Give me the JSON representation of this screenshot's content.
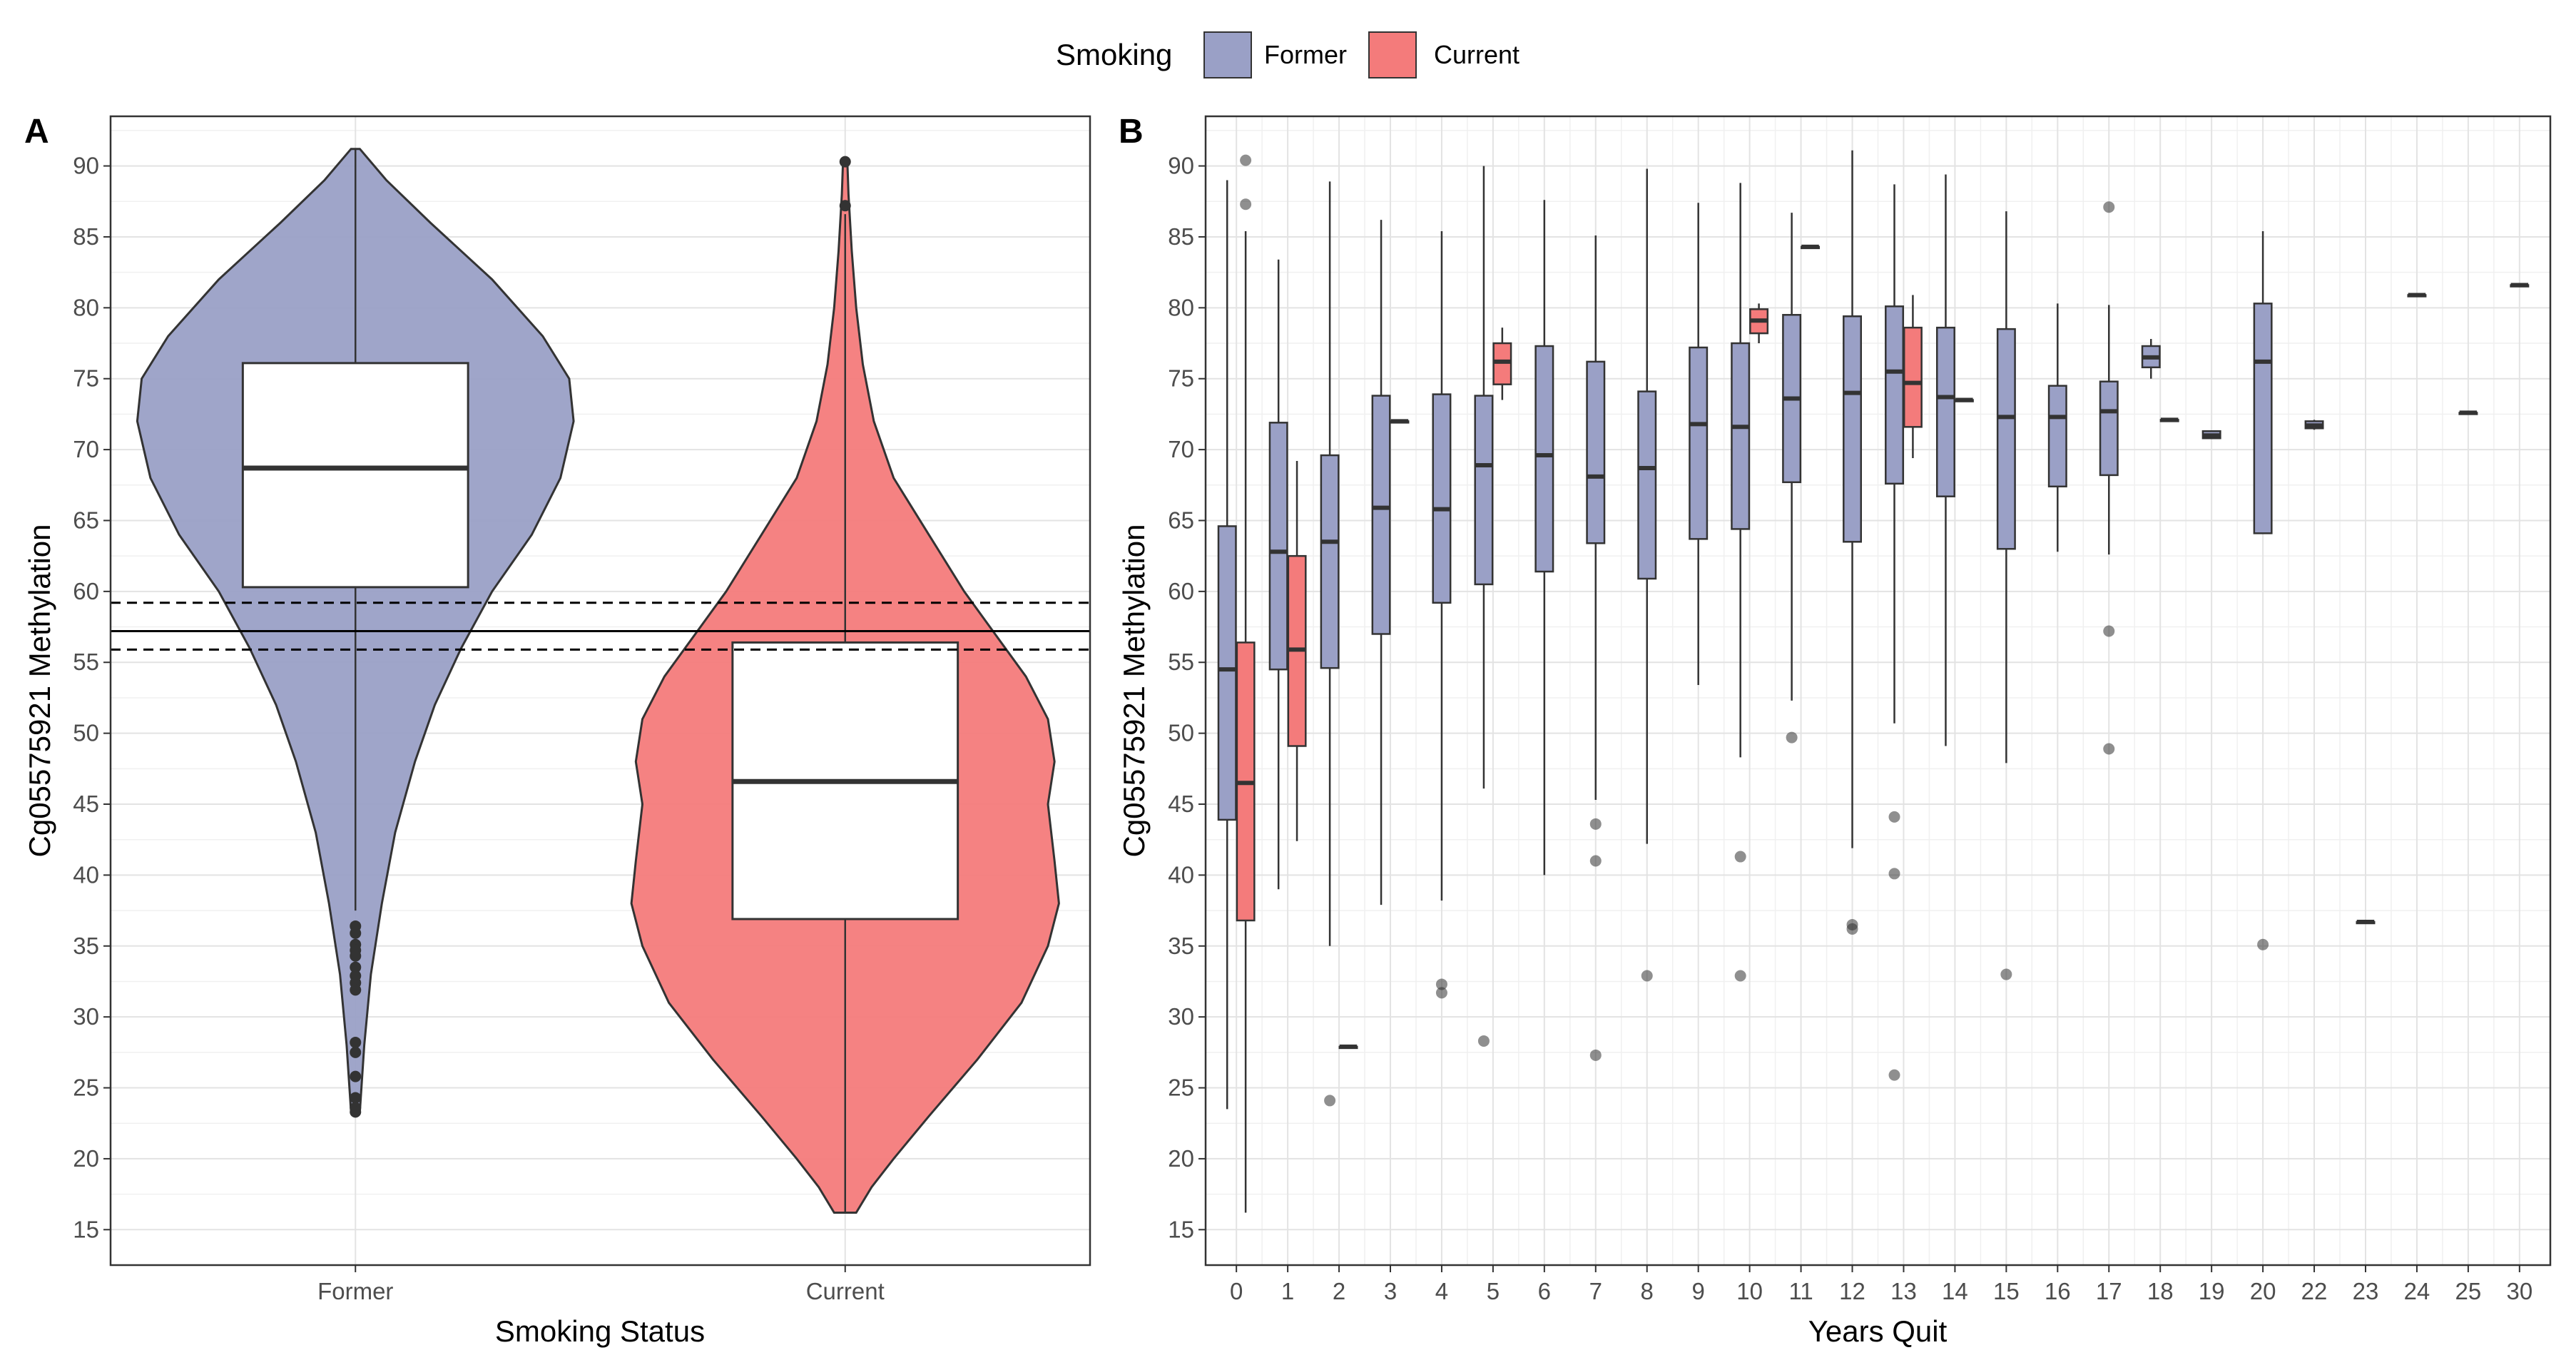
{
  "legend": {
    "title": "Smoking",
    "items": [
      {
        "label": "Former",
        "color": "#9aa0c6"
      },
      {
        "label": "Current",
        "color": "#f47b7b"
      }
    ]
  },
  "chart_data": [
    {
      "panel": "A",
      "type": "violin",
      "xlabel": "Smoking Status",
      "ylabel": "Cg05575921 Methylation",
      "ylim": [
        12.5,
        93.5
      ],
      "yticks": [
        15,
        20,
        25,
        30,
        35,
        40,
        45,
        50,
        55,
        60,
        65,
        70,
        75,
        80,
        85,
        90
      ],
      "categories": [
        "Former",
        "Current"
      ],
      "reference_lines": [
        {
          "value": 57.2,
          "style": "solid"
        },
        {
          "value": 59.2,
          "style": "dashed"
        },
        {
          "value": 55.9,
          "style": "dashed"
        }
      ],
      "groups": [
        {
          "name": "Former",
          "color": "#9aa0c6",
          "box": {
            "q1": 60.3,
            "median": 68.7,
            "q3": 76.1,
            "lower": 37.5,
            "upper": 91.2
          },
          "outliers": [
            36.4,
            35.9,
            35.1,
            34.7,
            34.3,
            33.5,
            32.9,
            32.4,
            31.9,
            28.2,
            27.5,
            25.8,
            24.3,
            23.6,
            23.3
          ],
          "density": [
            [
              23.3,
              0.02
            ],
            [
              28,
              0.04
            ],
            [
              33,
              0.07
            ],
            [
              38,
              0.12
            ],
            [
              43,
              0.18
            ],
            [
              48,
              0.27
            ],
            [
              52,
              0.36
            ],
            [
              56,
              0.48
            ],
            [
              60,
              0.62
            ],
            [
              64,
              0.8
            ],
            [
              68,
              0.93
            ],
            [
              72,
              0.99
            ],
            [
              75,
              0.97
            ],
            [
              78,
              0.85
            ],
            [
              82,
              0.62
            ],
            [
              86,
              0.34
            ],
            [
              89,
              0.14
            ],
            [
              91.2,
              0.02
            ]
          ]
        },
        {
          "name": "Current",
          "color": "#f47b7b",
          "box": {
            "q1": 36.9,
            "median": 46.6,
            "q3": 56.4,
            "lower": 16.2,
            "upper": 86.6
          },
          "outliers": [
            87.2,
            90.3
          ],
          "density": [
            [
              16.2,
              0.05
            ],
            [
              18,
              0.12
            ],
            [
              20,
              0.22
            ],
            [
              23,
              0.38
            ],
            [
              27,
              0.6
            ],
            [
              31,
              0.8
            ],
            [
              35,
              0.92
            ],
            [
              38,
              0.97
            ],
            [
              41,
              0.95
            ],
            [
              45,
              0.92
            ],
            [
              48,
              0.95
            ],
            [
              51,
              0.92
            ],
            [
              54,
              0.82
            ],
            [
              57,
              0.68
            ],
            [
              60,
              0.54
            ],
            [
              64,
              0.38
            ],
            [
              68,
              0.22
            ],
            [
              72,
              0.13
            ],
            [
              76,
              0.08
            ],
            [
              80,
              0.05
            ],
            [
              84,
              0.03
            ],
            [
              88,
              0.015
            ],
            [
              90.3,
              0.01
            ]
          ]
        }
      ]
    },
    {
      "panel": "B",
      "type": "box",
      "xlabel": "Years Quit",
      "ylabel": "Cg05575921 Methylation",
      "ylim": [
        12.5,
        93.5
      ],
      "yticks": [
        15,
        20,
        25,
        30,
        35,
        40,
        45,
        50,
        55,
        60,
        65,
        70,
        75,
        80,
        85,
        90
      ],
      "categories": [
        "0",
        "1",
        "2",
        "3",
        "4",
        "5",
        "6",
        "7",
        "8",
        "9",
        "10",
        "11",
        "12",
        "13",
        "14",
        "15",
        "16",
        "17",
        "18",
        "19",
        "20",
        "22",
        "23",
        "24",
        "25",
        "30"
      ],
      "boxes": [
        {
          "x": "0",
          "group": "Former",
          "q1": 43.9,
          "median": 54.5,
          "q3": 64.6,
          "lower": 23.5,
          "upper": 89.0,
          "outliers": []
        },
        {
          "x": "0",
          "group": "Current",
          "q1": 36.8,
          "median": 46.5,
          "q3": 56.4,
          "lower": 16.2,
          "upper": 85.4,
          "outliers": [
            87.3,
            90.4
          ]
        },
        {
          "x": "1",
          "group": "Former",
          "q1": 54.5,
          "median": 62.8,
          "q3": 71.9,
          "lower": 39.0,
          "upper": 83.4,
          "outliers": []
        },
        {
          "x": "1",
          "group": "Current",
          "q1": 49.1,
          "median": 55.9,
          "q3": 62.5,
          "lower": 42.4,
          "upper": 69.2,
          "outliers": []
        },
        {
          "x": "2",
          "group": "Former",
          "q1": 54.6,
          "median": 63.5,
          "q3": 69.6,
          "lower": 35.0,
          "upper": 88.9,
          "outliers": [
            24.1
          ]
        },
        {
          "x": "2",
          "group": "Current",
          "q1": 27.9,
          "median": 27.9,
          "q3": 27.9,
          "lower": 27.9,
          "upper": 27.9,
          "outliers": []
        },
        {
          "x": "3",
          "group": "Former",
          "q1": 57.0,
          "median": 65.9,
          "q3": 73.8,
          "lower": 37.9,
          "upper": 86.2,
          "outliers": []
        },
        {
          "x": "3",
          "group": "Current",
          "q1": 72.0,
          "median": 72.0,
          "q3": 72.0,
          "lower": 72.0,
          "upper": 72.0,
          "outliers": []
        },
        {
          "x": "4",
          "group": "Former",
          "q1": 59.2,
          "median": 65.8,
          "q3": 73.9,
          "lower": 38.2,
          "upper": 85.4,
          "outliers": [
            32.3,
            31.7
          ]
        },
        {
          "x": "5",
          "group": "Former",
          "q1": 60.5,
          "median": 68.9,
          "q3": 73.8,
          "lower": 46.1,
          "upper": 90.0,
          "outliers": [
            28.3
          ]
        },
        {
          "x": "5",
          "group": "Current",
          "q1": 74.6,
          "median": 76.2,
          "q3": 77.5,
          "lower": 73.5,
          "upper": 78.6,
          "outliers": []
        },
        {
          "x": "6",
          "group": "Former",
          "q1": 61.4,
          "median": 69.6,
          "q3": 77.3,
          "lower": 40.0,
          "upper": 87.6,
          "outliers": []
        },
        {
          "x": "7",
          "group": "Former",
          "q1": 63.4,
          "median": 68.1,
          "q3": 76.2,
          "lower": 45.3,
          "upper": 85.1,
          "outliers": [
            43.6,
            41.0,
            27.3
          ]
        },
        {
          "x": "8",
          "group": "Former",
          "q1": 60.9,
          "median": 68.7,
          "q3": 74.1,
          "lower": 42.2,
          "upper": 89.8,
          "outliers": [
            32.9
          ]
        },
        {
          "x": "9",
          "group": "Former",
          "q1": 63.7,
          "median": 71.8,
          "q3": 77.2,
          "lower": 53.4,
          "upper": 87.4,
          "outliers": []
        },
        {
          "x": "10",
          "group": "Former",
          "q1": 64.4,
          "median": 71.6,
          "q3": 77.5,
          "lower": 48.3,
          "upper": 88.8,
          "outliers": [
            41.3,
            32.9
          ]
        },
        {
          "x": "10",
          "group": "Current",
          "q1": 78.2,
          "median": 79.1,
          "q3": 79.9,
          "lower": 77.5,
          "upper": 80.3,
          "outliers": []
        },
        {
          "x": "11",
          "group": "Former",
          "q1": 67.7,
          "median": 73.6,
          "q3": 79.5,
          "lower": 52.3,
          "upper": 86.7,
          "outliers": [
            49.7
          ]
        },
        {
          "x": "11",
          "group": "Current",
          "q1": 84.3,
          "median": 84.3,
          "q3": 84.3,
          "lower": 84.3,
          "upper": 84.3,
          "outliers": []
        },
        {
          "x": "12",
          "group": "Former",
          "q1": 63.5,
          "median": 74.0,
          "q3": 79.4,
          "lower": 41.9,
          "upper": 91.1,
          "outliers": [
            36.5,
            36.2
          ]
        },
        {
          "x": "13",
          "group": "Former",
          "q1": 67.6,
          "median": 75.5,
          "q3": 80.1,
          "lower": 50.7,
          "upper": 88.7,
          "outliers": [
            44.1,
            40.1,
            25.9
          ]
        },
        {
          "x": "13",
          "group": "Current",
          "q1": 71.6,
          "median": 74.7,
          "q3": 78.6,
          "lower": 69.4,
          "upper": 80.9,
          "outliers": []
        },
        {
          "x": "14",
          "group": "Former",
          "q1": 66.7,
          "median": 73.7,
          "q3": 78.6,
          "lower": 49.1,
          "upper": 89.4,
          "outliers": []
        },
        {
          "x": "14",
          "group": "Current",
          "q1": 73.5,
          "median": 73.5,
          "q3": 73.5,
          "lower": 73.5,
          "upper": 73.5,
          "outliers": []
        },
        {
          "x": "15",
          "group": "Former",
          "q1": 63.0,
          "median": 72.3,
          "q3": 78.5,
          "lower": 47.9,
          "upper": 86.8,
          "outliers": [
            33.0
          ]
        },
        {
          "x": "16",
          "group": "Former",
          "q1": 67.4,
          "median": 72.3,
          "q3": 74.5,
          "lower": 62.8,
          "upper": 80.3,
          "outliers": []
        },
        {
          "x": "17",
          "group": "Former",
          "q1": 68.2,
          "median": 72.7,
          "q3": 74.8,
          "lower": 62.6,
          "upper": 80.2,
          "outliers": [
            87.1,
            57.2,
            48.9
          ]
        },
        {
          "x": "18",
          "group": "Former",
          "q1": 75.8,
          "median": 76.5,
          "q3": 77.3,
          "lower": 75.0,
          "upper": 77.8,
          "outliers": []
        },
        {
          "x": "18",
          "group": "Current",
          "q1": 72.1,
          "median": 72.1,
          "q3": 72.1,
          "lower": 72.1,
          "upper": 72.1,
          "outliers": []
        },
        {
          "x": "19",
          "group": "Former",
          "q1": 70.8,
          "median": 71.0,
          "q3": 71.3,
          "lower": 70.8,
          "upper": 71.3,
          "outliers": []
        },
        {
          "x": "20",
          "group": "Former",
          "q1": 64.1,
          "median": 76.2,
          "q3": 80.3,
          "lower": 64.1,
          "upper": 85.4,
          "outliers": [
            35.1
          ]
        },
        {
          "x": "22",
          "group": "Former",
          "q1": 71.5,
          "median": 71.7,
          "q3": 72.0,
          "lower": 71.4,
          "upper": 72.1,
          "outliers": []
        },
        {
          "x": "23",
          "group": "Former",
          "q1": 36.7,
          "median": 36.7,
          "q3": 36.7,
          "lower": 36.7,
          "upper": 36.7,
          "outliers": []
        },
        {
          "x": "24",
          "group": "Former",
          "q1": 80.9,
          "median": 80.9,
          "q3": 80.9,
          "lower": 80.9,
          "upper": 80.9,
          "outliers": []
        },
        {
          "x": "25",
          "group": "Former",
          "q1": 72.6,
          "median": 72.6,
          "q3": 72.6,
          "lower": 72.6,
          "upper": 72.6,
          "outliers": []
        },
        {
          "x": "30",
          "group": "Former",
          "q1": 81.6,
          "median": 81.6,
          "q3": 81.6,
          "lower": 81.6,
          "upper": 81.6,
          "outliers": []
        }
      ]
    }
  ]
}
